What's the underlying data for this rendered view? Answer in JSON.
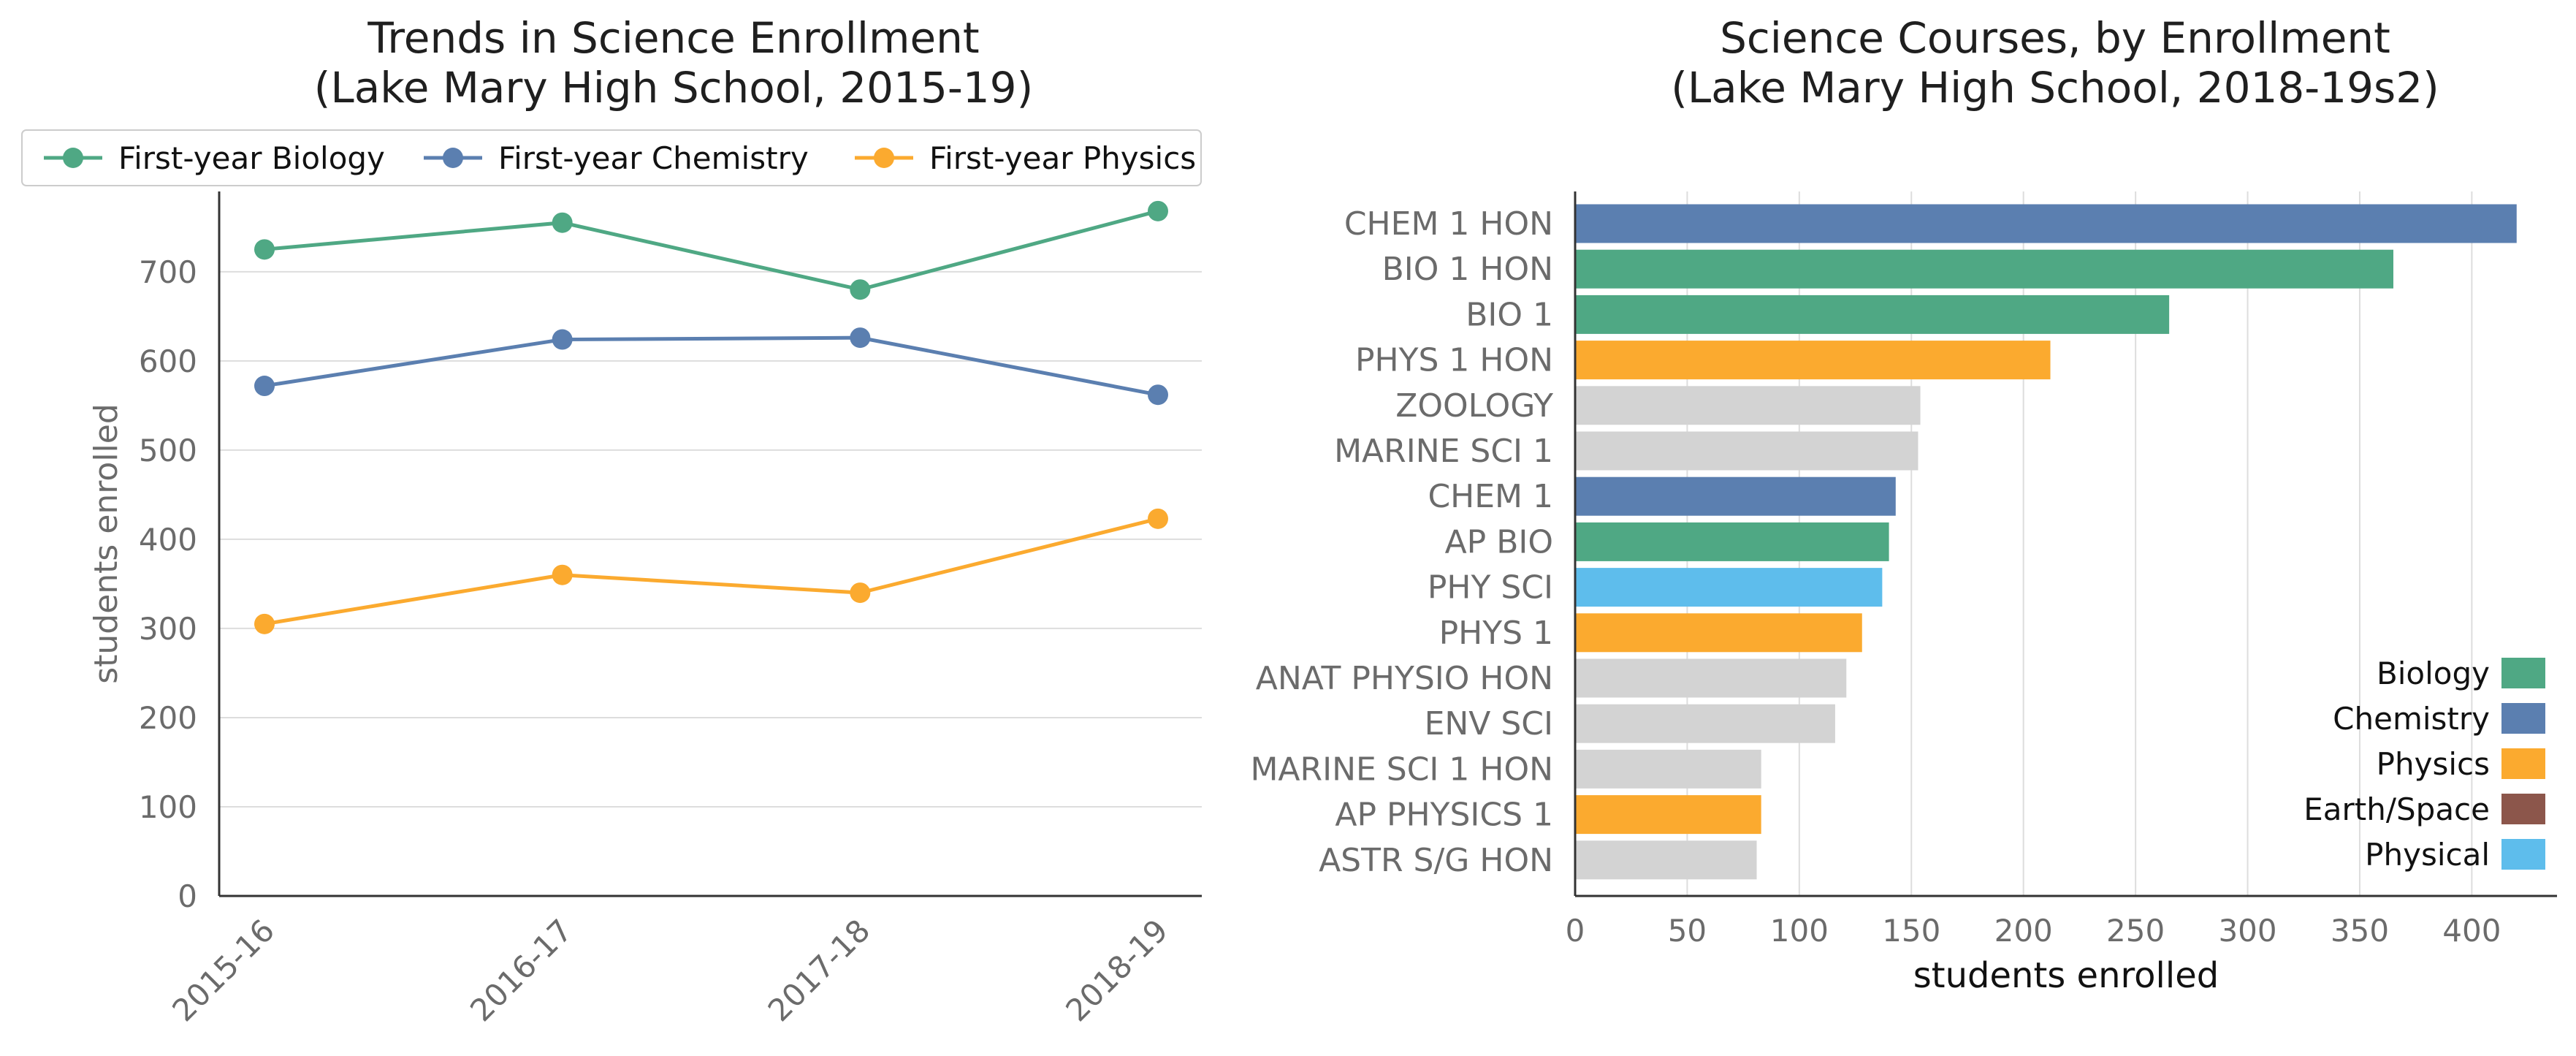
{
  "chart_data": [
    {
      "type": "line",
      "title": "Trends in Science Enrollment",
      "subtitle": "(Lake Mary High School, 2015-19)",
      "xlabel": "",
      "ylabel": "students enrolled",
      "categories": [
        "2015-16",
        "2016-17",
        "2017-18",
        "2018-19"
      ],
      "ylim": [
        0,
        790
      ],
      "yticks": [
        0,
        100,
        200,
        300,
        400,
        500,
        600,
        700
      ],
      "grid": "horizontal",
      "legend": "top",
      "series": [
        {
          "name": "First-year Biology",
          "color": "#4fa884",
          "values": [
            725,
            755,
            680,
            768
          ]
        },
        {
          "name": "First-year Chemistry",
          "color": "#5b7fb0",
          "values": [
            572,
            624,
            626,
            562
          ]
        },
        {
          "name": "First-year Physics",
          "color": "#fbaa2f",
          "values": [
            305,
            360,
            340,
            423
          ]
        }
      ]
    },
    {
      "type": "bar",
      "orientation": "horizontal",
      "title": "Science Courses, by Enrollment",
      "subtitle": "(Lake Mary High School, 2018-19s2)",
      "xlabel": "students enrolled",
      "ylabel": "",
      "xlim": [
        0,
        438
      ],
      "xticks": [
        0,
        50,
        100,
        150,
        200,
        250,
        300,
        350,
        400
      ],
      "grid": "vertical",
      "legend": "right",
      "categories": [
        "CHEM 1 HON",
        "BIO 1 HON",
        "BIO 1",
        "PHYS 1 HON",
        "ZOOLOGY",
        "MARINE SCI 1",
        "CHEM 1",
        "AP BIO",
        "PHY SCI",
        "PHYS 1",
        "ANAT PHYSIO HON",
        "ENV SCI",
        "MARINE SCI 1 HON",
        "AP PHYSICS 1",
        "ASTR S/G HON"
      ],
      "values": [
        420,
        365,
        265,
        212,
        154,
        153,
        143,
        140,
        137,
        128,
        121,
        116,
        83,
        83,
        81
      ],
      "groups": [
        "Chemistry",
        "Biology",
        "Biology",
        "Physics",
        "Other",
        "Other",
        "Chemistry",
        "Biology",
        "Physical",
        "Physics",
        "Other",
        "Other",
        "Other",
        "Physics",
        "Other"
      ],
      "legend_entries": [
        {
          "name": "Biology",
          "color": "#4fa884"
        },
        {
          "name": "Chemistry",
          "color": "#5b7fb0"
        },
        {
          "name": "Physics",
          "color": "#fbaa2f"
        },
        {
          "name": "Earth/Space",
          "color": "#8c564b"
        },
        {
          "name": "Physical",
          "color": "#5ebdec"
        }
      ],
      "other_color": "#d3d3d3"
    }
  ]
}
